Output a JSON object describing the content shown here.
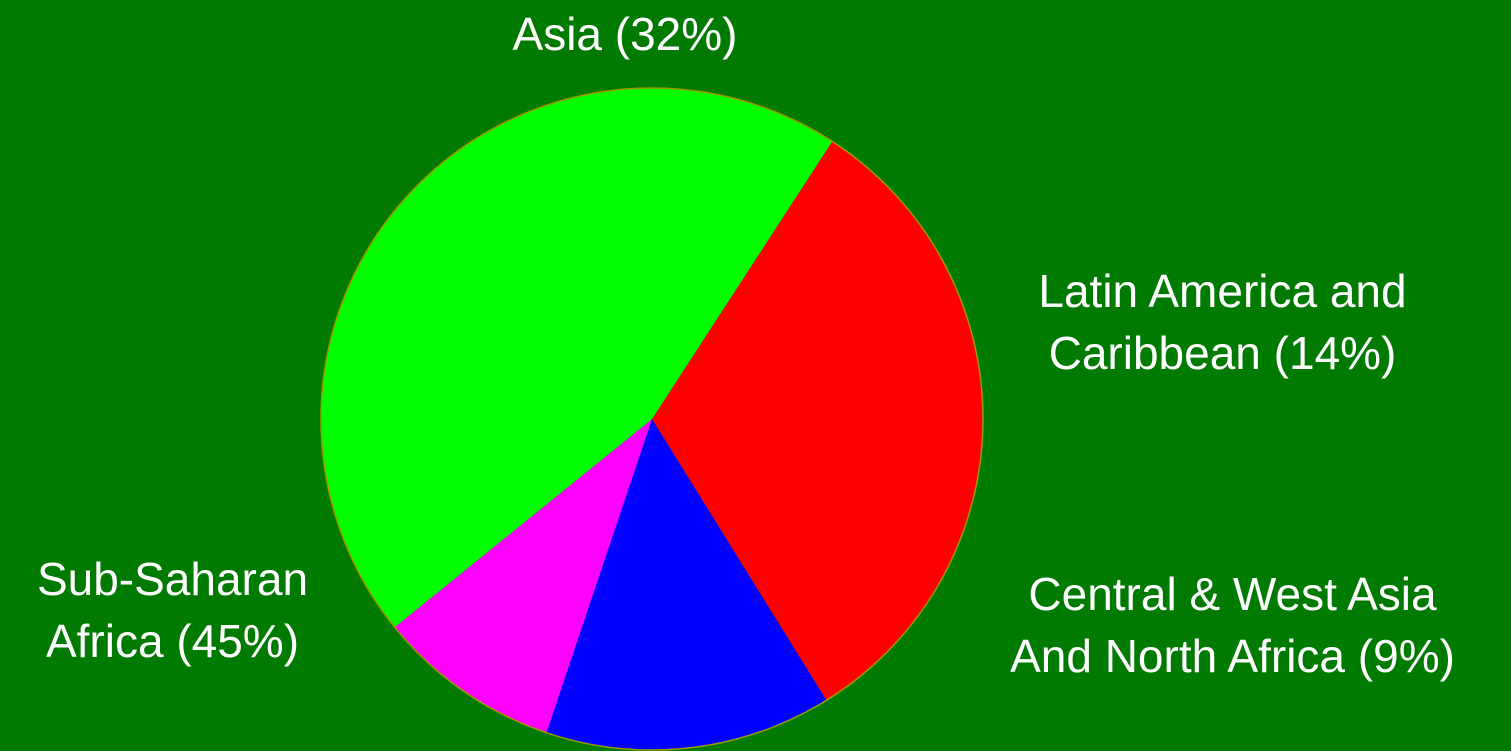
{
  "chart_data": {
    "type": "pie",
    "slices": [
      {
        "name": "Asia",
        "value": 32,
        "color": "#ff0000",
        "label_lines": [
          "Asia (32%)"
        ]
      },
      {
        "name": "Latin America and Caribbean",
        "value": 14,
        "color": "#0000ff",
        "label_lines": [
          "Latin America and",
          "Caribbean (14%)"
        ]
      },
      {
        "name": "Central & West Asia And North Africa",
        "value": 9,
        "color": "#ff00ff",
        "label_lines": [
          "Central & West Asia",
          "And North Africa (9%)"
        ]
      },
      {
        "name": "Sub-Saharan Africa",
        "value": 45,
        "color": "#00ff00",
        "label_lines": [
          "Sub-Saharan",
          "Africa (45%)"
        ]
      }
    ],
    "start_angle_deg": -57,
    "direction": "clockwise",
    "background_color": "#007a00",
    "edge_color": "#999900"
  }
}
